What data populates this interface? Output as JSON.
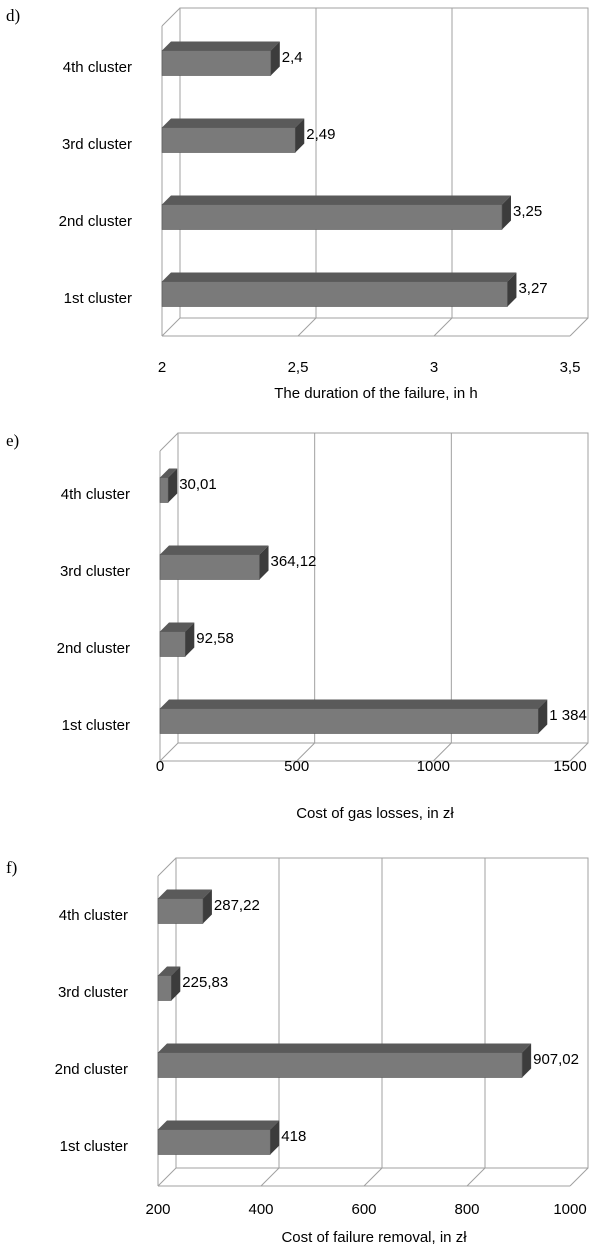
{
  "chart_data": [
    {
      "panel": "d)",
      "type": "bar",
      "orientation": "horizontal",
      "categories": [
        "4th cluster",
        "3rd cluster",
        "2nd cluster",
        "1st cluster"
      ],
      "values": [
        2.4,
        2.49,
        3.25,
        3.27
      ],
      "value_labels": [
        "2,4",
        "2,49",
        "3,25",
        "3,27"
      ],
      "xlabel": "The duration of the failure, in h",
      "xlim": [
        2,
        3.5
      ],
      "ticks": [
        2,
        2.5,
        3,
        3.5
      ],
      "tick_labels": [
        "2",
        "2,5",
        "3",
        "3,5"
      ],
      "grid": true
    },
    {
      "panel": "e)",
      "type": "bar",
      "orientation": "horizontal",
      "categories": [
        "4th cluster",
        "3rd cluster",
        "2nd cluster",
        "1st cluster"
      ],
      "values": [
        30.01,
        364.12,
        92.58,
        1384
      ],
      "value_labels": [
        "30,01",
        "364,12",
        "92,58",
        "1 384"
      ],
      "xlabel": "Cost of gas losses, in zł",
      "xlim": [
        0,
        1500
      ],
      "ticks": [
        0,
        500,
        1000,
        1500
      ],
      "tick_labels": [
        "0",
        "500",
        "1000",
        "1500"
      ],
      "grid": true
    },
    {
      "panel": "f)",
      "type": "bar",
      "orientation": "horizontal",
      "categories": [
        "4th cluster",
        "3rd cluster",
        "2nd cluster",
        "1st cluster"
      ],
      "values": [
        287.22,
        225.83,
        907.02,
        418
      ],
      "value_labels": [
        "287,22",
        "225,83",
        "907,02",
        "418"
      ],
      "xlabel": "Cost of failure removal, in zł",
      "xlim": [
        200,
        1000
      ],
      "ticks": [
        200,
        400,
        600,
        800,
        1000
      ],
      "tick_labels": [
        "200",
        "400",
        "600",
        "800",
        "1000"
      ],
      "grid": true
    }
  ]
}
